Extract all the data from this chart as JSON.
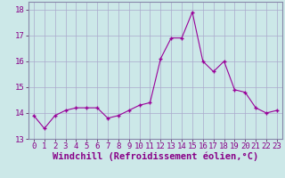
{
  "hours": [
    0,
    1,
    2,
    3,
    4,
    5,
    6,
    7,
    8,
    9,
    10,
    11,
    12,
    13,
    14,
    15,
    16,
    17,
    18,
    19,
    20,
    21,
    22,
    23
  ],
  "values": [
    13.9,
    13.4,
    13.9,
    14.1,
    14.2,
    14.2,
    14.2,
    13.8,
    13.9,
    14.1,
    14.3,
    14.4,
    16.1,
    16.9,
    16.9,
    17.9,
    16.0,
    15.6,
    16.0,
    14.9,
    14.8,
    14.2,
    14.0,
    14.1
  ],
  "line_color": "#990099",
  "marker": "+",
  "bg_color": "#cce8e8",
  "grid_color": "#aaaacc",
  "ylim": [
    13.0,
    18.3
  ],
  "yticks": [
    13,
    14,
    15,
    16,
    17,
    18
  ],
  "xlabel": "Windchill (Refroidissement éolien,°C)",
  "tick_fontsize": 6.5,
  "xlabel_fontsize": 7.5
}
